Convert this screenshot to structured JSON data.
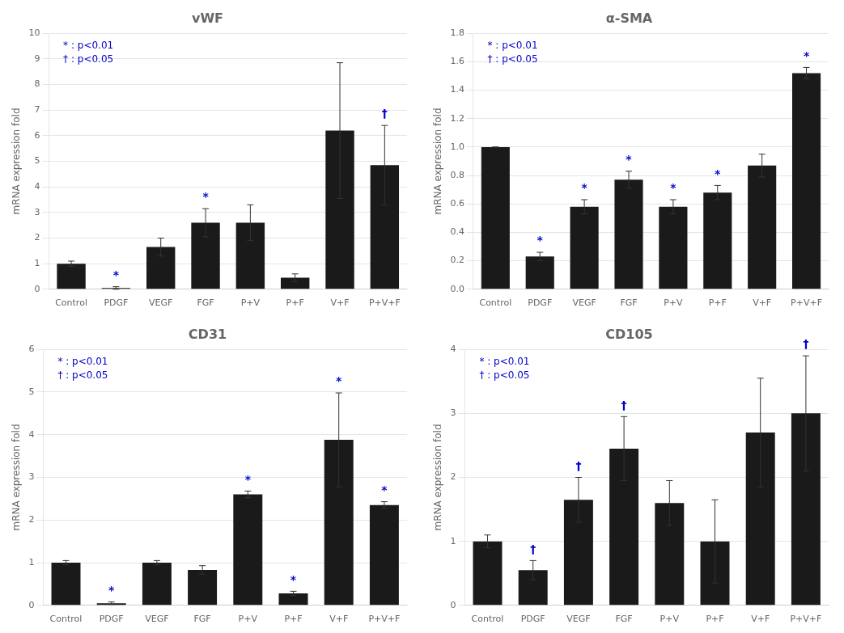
{
  "chart_data": [
    {
      "type": "bar",
      "title": "vWF",
      "ylabel": "mRNA expression fold",
      "categories": [
        "Control",
        "PDGF",
        "VEGF",
        "FGF",
        "P+V",
        "P+F",
        "V+F",
        "P+V+F"
      ],
      "values": [
        1.0,
        0.05,
        1.65,
        2.6,
        2.6,
        0.45,
        6.2,
        4.85
      ],
      "errors": [
        0.1,
        0.05,
        0.35,
        0.55,
        0.7,
        0.15,
        2.65,
        1.55
      ],
      "color": "#1a1a1a",
      "ylim": [
        0,
        10
      ],
      "yticks": [
        0,
        1,
        2,
        3,
        4,
        5,
        6,
        7,
        8,
        9,
        10
      ],
      "grid": true,
      "annotations": [
        {
          "category": "PDGF",
          "text": "*",
          "color": "#0000cc"
        },
        {
          "category": "FGF",
          "text": "*",
          "color": "#0000cc"
        },
        {
          "category": "P+V+F",
          "text": "†",
          "color": "#0000cc"
        },
        {
          "text": "* : p<0.01",
          "color": "#0000cc"
        },
        {
          "text": "† : p<0.05",
          "color": "#0000cc"
        }
      ]
    },
    {
      "type": "bar",
      "title": "α-SMA",
      "ylabel": "mRNA expression fold",
      "categories": [
        "Control",
        "PDGF",
        "VEGF",
        "FGF",
        "P+V",
        "P+F",
        "V+F",
        "P+V+F"
      ],
      "values": [
        1.0,
        0.23,
        0.58,
        0.77,
        0.58,
        0.68,
        0.87,
        1.52
      ],
      "errors": [
        0.0,
        0.03,
        0.05,
        0.06,
        0.05,
        0.05,
        0.08,
        0.04
      ],
      "color": "#1a1a1a",
      "ylim": [
        0,
        1.8
      ],
      "yticks": [
        {
          "value": 0,
          "label": "0.0"
        },
        0.2,
        0.4,
        0.6,
        0.8,
        {
          "value": 1.0,
          "label": "1.0"
        },
        1.2,
        1.4,
        1.6,
        1.8
      ],
      "grid": true,
      "annotations": [
        {
          "category": "PDGF",
          "text": "*",
          "color": "#0000cc"
        },
        {
          "category": "VEGF",
          "text": "*",
          "color": "#0000cc"
        },
        {
          "category": "FGF",
          "text": "*",
          "color": "#0000cc"
        },
        {
          "category": "P+V",
          "text": "*",
          "color": "#0000cc"
        },
        {
          "category": "P+F",
          "text": "*",
          "color": "#0000cc"
        },
        {
          "category": "P+V+F",
          "text": "*",
          "color": "#0000cc"
        },
        {
          "text": "* : p<0.01",
          "color": "#0000cc"
        },
        {
          "text": "† : p<0.05",
          "color": "#0000cc"
        }
      ]
    },
    {
      "type": "bar",
      "title": "CD31",
      "ylabel": "mRNA expression fold",
      "categories": [
        "Control",
        "PDGF",
        "VEGF",
        "FGF",
        "P+V",
        "P+F",
        "V+F",
        "P+V+F"
      ],
      "values": [
        1.0,
        0.05,
        1.0,
        0.83,
        2.6,
        0.28,
        3.88,
        2.35
      ],
      "errors": [
        0.05,
        0.03,
        0.05,
        0.1,
        0.08,
        0.05,
        1.1,
        0.08
      ],
      "color": "#1a1a1a",
      "ylim": [
        0,
        6
      ],
      "yticks": [
        0,
        1,
        2,
        3,
        4,
        5,
        6
      ],
      "grid": true,
      "annotations": [
        {
          "category": "PDGF",
          "text": "*",
          "color": "#0000cc"
        },
        {
          "category": "P+V",
          "text": "*",
          "color": "#0000cc"
        },
        {
          "category": "P+F",
          "text": "*",
          "color": "#0000cc"
        },
        {
          "category": "V+F",
          "text": "*",
          "color": "#0000cc"
        },
        {
          "category": "P+V+F",
          "text": "*",
          "color": "#0000cc"
        },
        {
          "text": "* : p<0.01",
          "color": "#0000cc"
        },
        {
          "text": "† : p<0.05",
          "color": "#0000cc"
        }
      ]
    },
    {
      "type": "bar",
      "title": "CD105",
      "ylabel": "mRNA expression fold",
      "categories": [
        "Control",
        "PDGF",
        "VEGF",
        "FGF",
        "P+V",
        "P+F",
        "V+F",
        "P+V+F"
      ],
      "values": [
        1.0,
        0.55,
        1.65,
        2.45,
        1.6,
        1.0,
        2.7,
        3.0
      ],
      "errors": [
        0.1,
        0.15,
        0.35,
        0.5,
        0.35,
        0.65,
        0.85,
        0.9
      ],
      "color": "#1a1a1a",
      "ylim": [
        0,
        4
      ],
      "yticks": [
        0,
        1,
        2,
        3,
        4
      ],
      "grid": true,
      "annotations": [
        {
          "category": "PDGF",
          "text": "†",
          "color": "#0000cc"
        },
        {
          "category": "VEGF",
          "text": "†",
          "color": "#0000cc"
        },
        {
          "category": "FGF",
          "text": "†",
          "color": "#0000cc"
        },
        {
          "category": "P+V+F",
          "text": "†",
          "color": "#0000cc"
        },
        {
          "text": "* : p<0.01",
          "color": "#0000cc"
        },
        {
          "text": "† : p<0.05",
          "color": "#0000cc"
        }
      ]
    }
  ]
}
